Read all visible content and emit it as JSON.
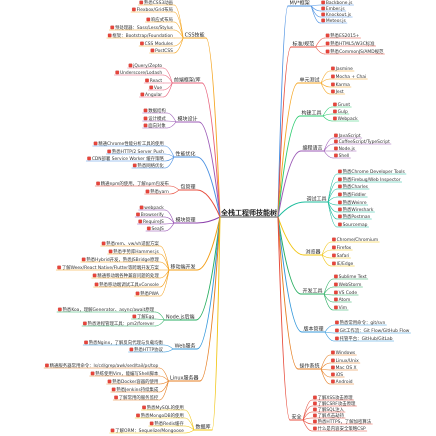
{
  "title": "全栈工程师技能树",
  "colors": {
    "center_line": "#555555",
    "icon": "#e8453c",
    "icon_border": "#b8322a"
  },
  "branches_left": [
    {
      "label": "CSS技能",
      "color": "#f5a623",
      "items": [
        "熟悉CSS3动画",
        "Flexbox/Grid布局",
        "响应式布局",
        "预处理器：Sass/Less/Stylus",
        "框架：Bootstrap/Foundation",
        "CSS Modules",
        "PostCSS"
      ]
    },
    {
      "label": "前端框架/库",
      "color": "#e8607a",
      "items": [
        "jQuery/Zepto",
        "Underscore/Lodash",
        "React",
        "Vue",
        "Angular"
      ]
    },
    {
      "label": "模块设计",
      "color": "#9b59b6",
      "items": [
        "数据结构",
        "设计模式",
        "面向对象"
      ]
    },
    {
      "label": "性能优化",
      "color": "#4a90e2",
      "items": [
        "精通Chrome性能分析工具的使用",
        "熟悉HTTP/2 Server Push",
        "CDN部署 Service Worker 缓存策略",
        "熟悉网络优化"
      ]
    },
    {
      "label": "包管理",
      "color": "#e74c3c",
      "items": [
        "精通npm的使用，了解npm包发布",
        "熟悉yarn"
      ]
    },
    {
      "label": "模块管理",
      "color": "#8e44ad",
      "items": [
        "webpack",
        "Browserify",
        "RequireJS",
        "SeaJS"
      ]
    },
    {
      "label": "移动端开发",
      "color": "#f39c12",
      "items": [
        "熟悉rem、vw/vh适配方案",
        "熟悉手势库Hammer.js",
        "熟悉Hybrid开发，熟悉JSBridge原理",
        "了解Weex/React Native/Flutter等跨端开发方案",
        "精通移动端各种兼容问题的处理",
        "熟悉移动端调试工具vConsole",
        "熟悉PWA"
      ]
    },
    {
      "label": "Node.js后端",
      "color": "#27ae60",
      "items": [
        "熟悉Koa，理解Generator、async/await原理",
        "了解Egg",
        "熟悉进程管理工具：pm2/forever"
      ]
    },
    {
      "label": "Web服务",
      "color": "#3498db",
      "items": [
        "熟悉Nginx，了解反向代理与负载均衡",
        "熟悉HTTP协议"
      ]
    },
    {
      "label": "Linux服务器",
      "color": "#e67e22",
      "items": [
        "精通服务器常用命令：ls/cd/grep/awk/sed/tail/ps/top",
        "熟练使用Vim，能编写Shell脚本",
        "熟悉Docker容器的使用",
        "熟悉Jenkins持续集成",
        "了解常用的服务监控"
      ]
    },
    {
      "label": "数据库",
      "color": "#f1c40f",
      "items": [
        "熟悉MySQL的使用",
        "熟悉MongoDB的使用",
        "熟悉Redis缓存",
        "了解ORM：Sequelize/Mongoose"
      ]
    }
  ],
  "branches_right": [
    {
      "label": "MV*框架",
      "color": "#4a90e2",
      "items": [
        "Backbone.js",
        "Ember.js",
        "Knockout.js",
        "Meteor.js"
      ]
    },
    {
      "label": "标准/规范",
      "color": "#e74c3c",
      "items": [
        "熟悉ES2015+",
        "熟悉HTML5/W3C标准",
        "熟悉CommonJS/AMD规范"
      ]
    },
    {
      "label": "单元测试",
      "color": "#f5a623",
      "items": [
        "Jasmine",
        "Mocha + Chai",
        "Karma",
        "Jest"
      ]
    },
    {
      "label": "构建工具",
      "color": "#2ecc71",
      "items": [
        "Grunt",
        "Gulp",
        "Webpack"
      ]
    },
    {
      "label": "编程语言",
      "color": "#9b59b6",
      "items": [
        "JavaScript",
        "CoffeeScript/TypeScript",
        "Node.js",
        "Shell"
      ]
    },
    {
      "label": "调试工具",
      "color": "#1abc9c",
      "items": [
        "熟悉Chrome Developer Tools",
        "熟悉Firebug/Web Inspector",
        "熟悉Charles",
        "熟悉Fiddler",
        "熟悉Weinre",
        "熟悉Wireshark",
        "熟悉Postman",
        "Sourcemap"
      ]
    },
    {
      "label": "浏览器",
      "color": "#f1c40f",
      "items": [
        "Chrome/Chromium",
        "Firefox",
        "Safari",
        "IE/Edge"
      ]
    },
    {
      "label": "开发工具",
      "color": "#27ae60",
      "items": [
        "Sublime Text",
        "WebStorm",
        "VS Code",
        "Atom",
        "Vim"
      ]
    },
    {
      "label": "版本管理",
      "color": "#3498db",
      "items": [
        "熟悉常用命令：git/svn",
        "Git工作流：Git Flow/GitHub Flow",
        "托管平台：GitHub/GitLab"
      ]
    },
    {
      "label": "操作系统",
      "color": "#e67e22",
      "items": [
        "Windows",
        "Linux/Unix",
        "Mac OS X",
        "iOS",
        "Android"
      ]
    },
    {
      "label": "安全",
      "color": "#e74c3c",
      "items": [
        "了解XSS攻击原理",
        "了解CSRF攻击原理",
        "了解SQL注入",
        "了解点击劫持",
        "熟悉HTTPS，了解加密算法",
        "什么是内容安全策略CSP"
      ]
    }
  ]
}
